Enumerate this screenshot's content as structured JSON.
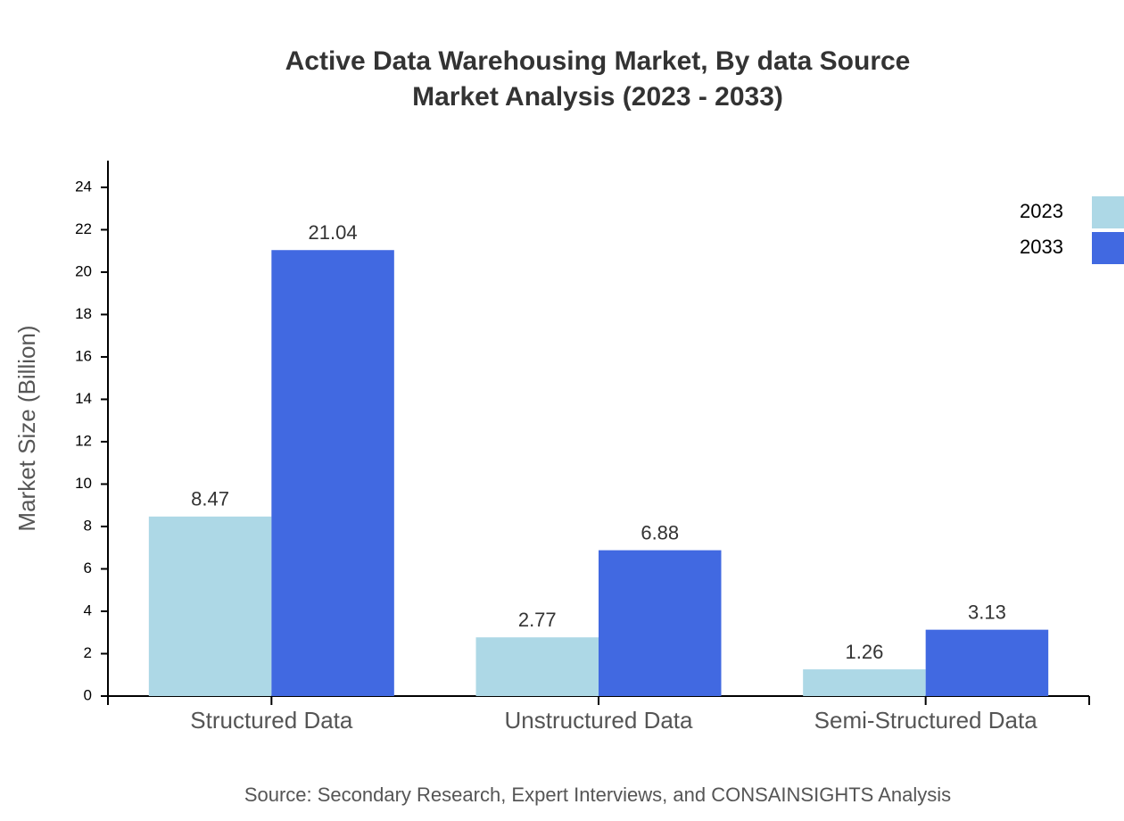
{
  "chart_data": {
    "type": "bar",
    "title": "Active Data Warehousing Market, By data Source",
    "subtitle": "Market Analysis (2023 - 2033)",
    "y_label": "Market Size (Billion)",
    "source": "Source: Secondary Research, Expert Interviews, and CONSAINSIGHTS Analysis",
    "categories": [
      "Structured Data",
      "Unstructured Data",
      "Semi-Structured Data"
    ],
    "series": [
      {
        "name": "2023",
        "color": "#add8e6",
        "values": [
          8.47,
          2.77,
          1.26
        ]
      },
      {
        "name": "2033",
        "color": "#4169e1",
        "values": [
          21.04,
          6.88,
          3.13
        ]
      }
    ],
    "ylim": [
      0,
      25.26
    ],
    "yticks": [
      0,
      2,
      4,
      6,
      8,
      10,
      12,
      14,
      16,
      18,
      20,
      22,
      24
    ],
    "legend": "top-right"
  }
}
